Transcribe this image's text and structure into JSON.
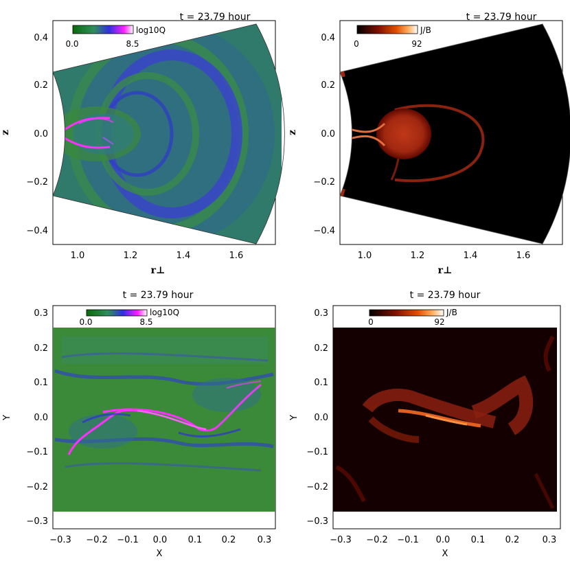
{
  "figure": {
    "panels": [
      {
        "title": "t = 23.79 hour",
        "colorbar": {
          "label": "log10Q",
          "min": "0.0",
          "max": "8.5",
          "colormap": "green-blue-magenta-white"
        },
        "xlabel": "r⊥",
        "ylabel": "z",
        "xticks": [
          "1.0",
          "1.2",
          "1.4",
          "1.6"
        ],
        "yticks": [
          "0.4",
          "0.2",
          "0.0",
          "−0.2",
          "−0.4"
        ]
      },
      {
        "title": "t = 23.79 hour",
        "colorbar": {
          "label": "J/B",
          "min": "0",
          "max": "92",
          "colormap": "black-red-orange-white"
        },
        "xlabel": "r⊥",
        "ylabel": "z",
        "xticks": [
          "1.0",
          "1.2",
          "1.4",
          "1.6"
        ],
        "yticks": [
          "0.4",
          "0.2",
          "0.0",
          "−0.2",
          "−0.4"
        ]
      },
      {
        "title": "t = 23.79 hour",
        "colorbar": {
          "label": "log10Q",
          "min": "0.0",
          "max": "8.5",
          "colormap": "green-blue-magenta-white"
        },
        "xlabel": "X",
        "ylabel": "Y",
        "xticks": [
          "−0.3",
          "−0.2",
          "−0.1",
          "0.0",
          "0.1",
          "0.2",
          "0.3"
        ],
        "yticks": [
          "0.3",
          "0.2",
          "0.1",
          "0.0",
          "−0.1",
          "−0.2",
          "−0.3"
        ]
      },
      {
        "title": "t = 23.79 hour",
        "colorbar": {
          "label": "J/B",
          "min": "0",
          "max": "92",
          "colormap": "black-red-orange-white"
        },
        "xlabel": "X",
        "ylabel": "Y",
        "xticks": [
          "−0.3",
          "−0.2",
          "−0.1",
          "0.0",
          "0.1",
          "0.2",
          "0.3"
        ],
        "yticks": [
          "0.3",
          "0.2",
          "0.1",
          "0.0",
          "−0.1",
          "−0.2",
          "−0.3"
        ]
      }
    ]
  },
  "colors": {
    "q_green": "#3a8a3a",
    "q_blue": "#3040c0",
    "q_magenta": "#ff20ff",
    "jb_dark": "#140000",
    "jb_red": "#b02000",
    "jb_orange": "#ff9030"
  }
}
